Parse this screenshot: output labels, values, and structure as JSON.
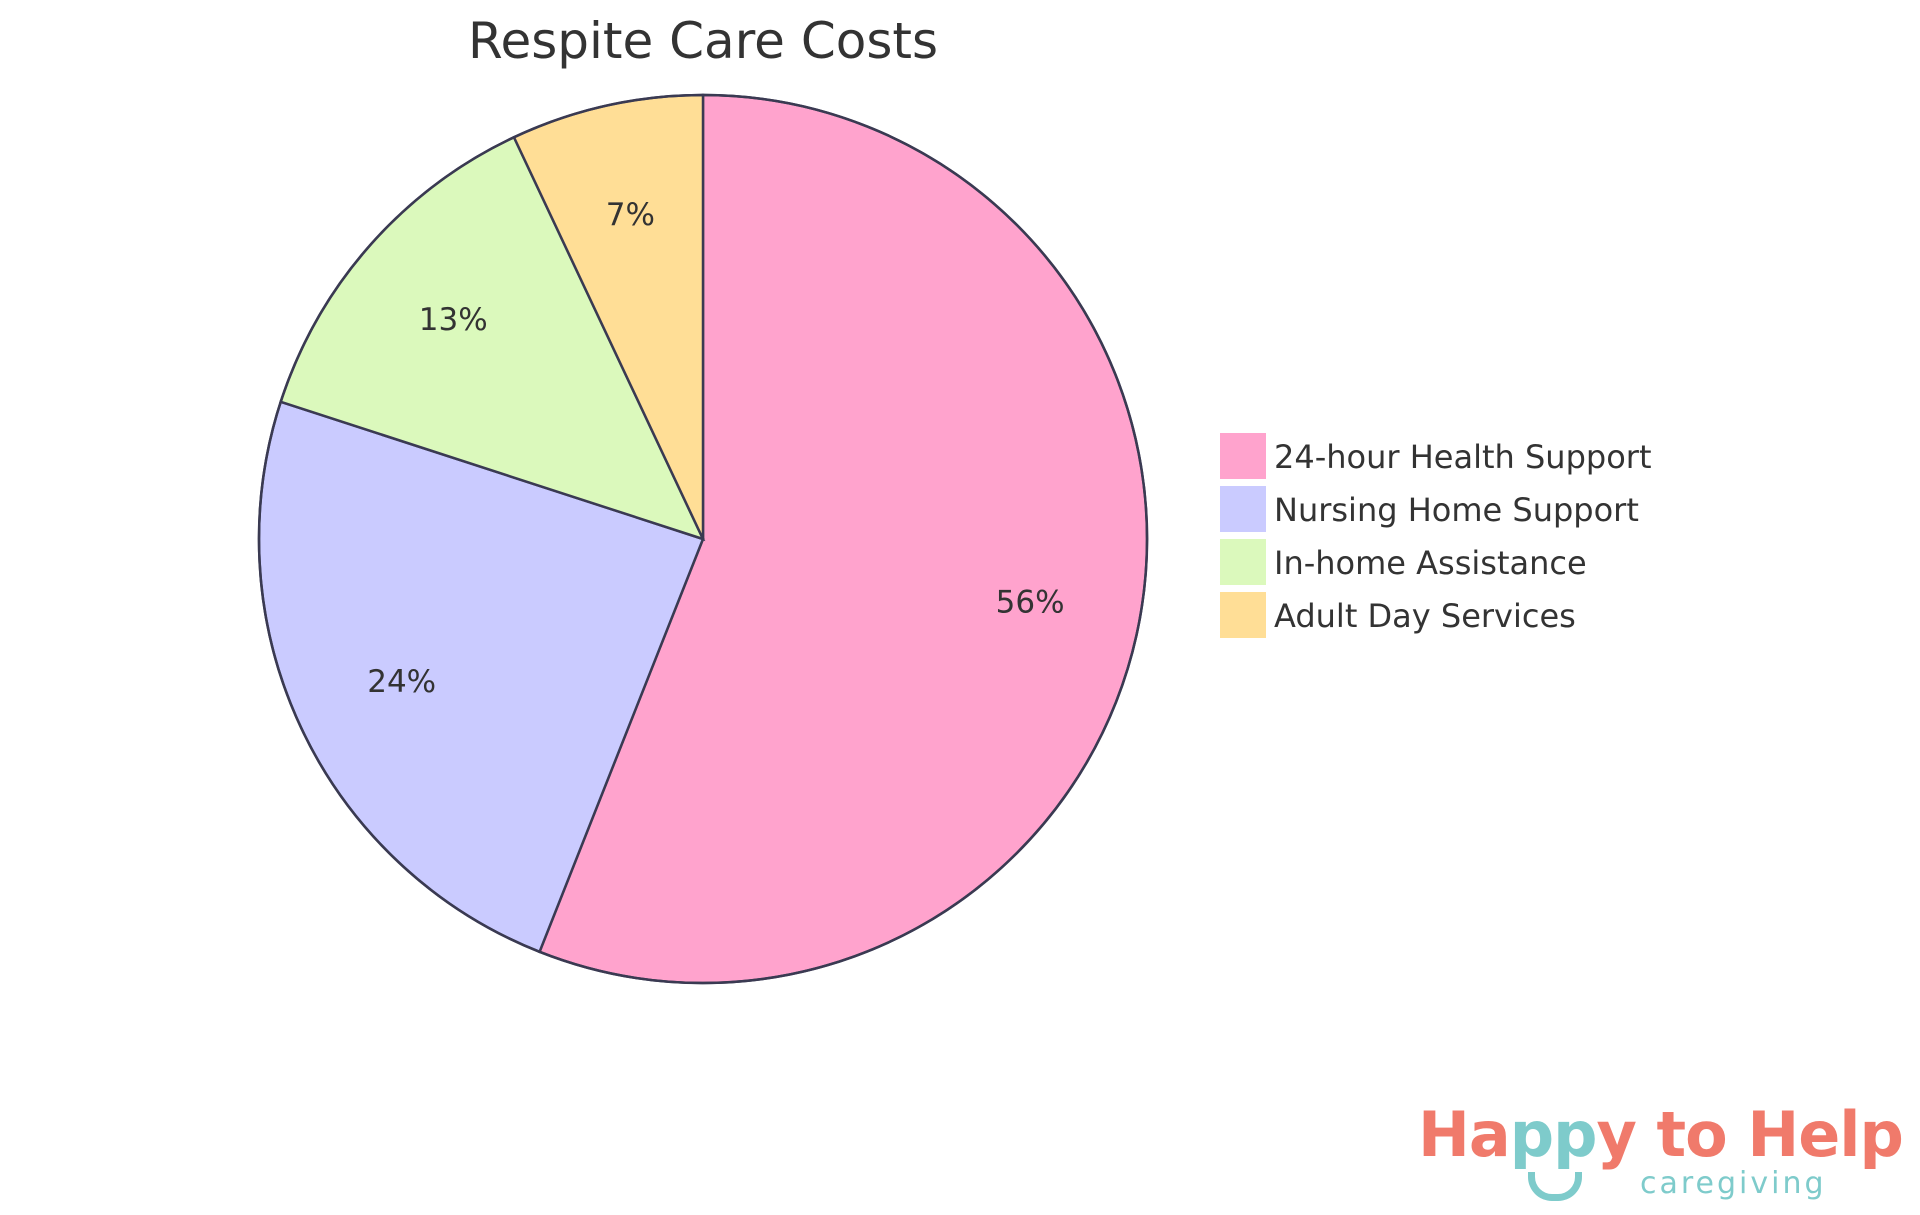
{
  "chart_data": {
    "type": "pie",
    "title": "Respite Care Costs",
    "categories": [
      "24-hour Health Support",
      "Nursing Home Support",
      "In-home Assistance",
      "Adult Day Services"
    ],
    "values": [
      56,
      24,
      13,
      7
    ],
    "labels": [
      "56%",
      "24%",
      "13%",
      "7%"
    ],
    "colors": [
      "#FFA3CD",
      "#CACBFF",
      "#DBF9BC",
      "#FFDE96"
    ],
    "stroke_color": "#3A3A52",
    "start_angle": "top",
    "direction": "clockwise",
    "legend_position": "right"
  },
  "logo": {
    "text_part1": "Ha",
    "text_part2": "pp",
    "text_part3": "y to Help",
    "subtitle": "caregiving",
    "colors": {
      "coral": "#F07A6B",
      "teal": "#7ECBCB"
    }
  }
}
